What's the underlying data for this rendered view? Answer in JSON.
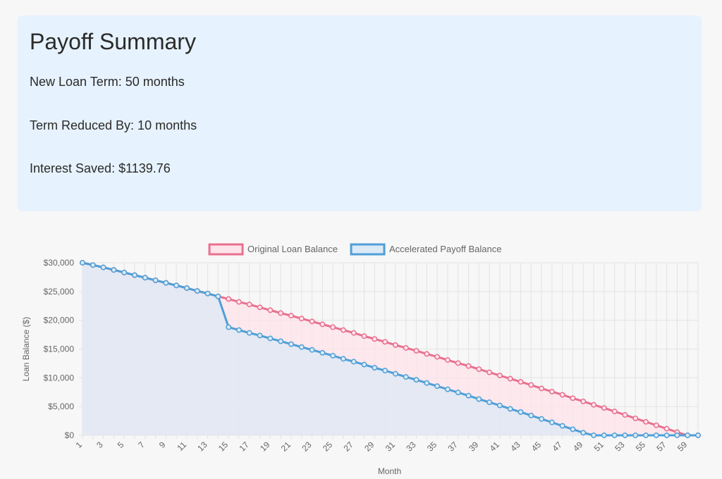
{
  "summary": {
    "title": "Payoff Summary",
    "new_term": "New Loan Term: 50 months",
    "reduced_by": "Term Reduced By: 10 months",
    "interest_saved": "Interest Saved: $1139.76"
  },
  "chart_data": {
    "type": "area",
    "xlabel": "Month",
    "ylabel": "Loan Balance ($)",
    "ylim": [
      0,
      30000
    ],
    "yticks": [
      0,
      5000,
      10000,
      15000,
      20000,
      25000,
      30000
    ],
    "ytick_labels": [
      "$0",
      "$5,000",
      "$10,000",
      "$15,000",
      "$20,000",
      "$25,000",
      "$30,000"
    ],
    "xticks": [
      1,
      3,
      5,
      7,
      9,
      11,
      13,
      15,
      17,
      19,
      21,
      23,
      25,
      27,
      29,
      31,
      33,
      35,
      37,
      39,
      41,
      43,
      45,
      47,
      49,
      51,
      53,
      55,
      57,
      59
    ],
    "x": [
      1,
      2,
      3,
      4,
      5,
      6,
      7,
      8,
      9,
      10,
      11,
      12,
      13,
      14,
      15,
      16,
      17,
      18,
      19,
      20,
      21,
      22,
      23,
      24,
      25,
      26,
      27,
      28,
      29,
      30,
      31,
      32,
      33,
      34,
      35,
      36,
      37,
      38,
      39,
      40,
      41,
      42,
      43,
      44,
      45,
      46,
      47,
      48,
      49,
      50,
      51,
      52,
      53,
      54,
      55,
      56,
      57,
      58,
      59,
      60
    ],
    "grid": true,
    "legend_position": "top",
    "series": [
      {
        "name": "Original Loan Balance",
        "color": "#e8708f",
        "fill": "#fde3ea",
        "values": [
          30000,
          29600,
          29200,
          28750,
          28300,
          27850,
          27400,
          26950,
          26500,
          26050,
          25600,
          25100,
          24650,
          24150,
          23700,
          23200,
          22750,
          22250,
          21750,
          21250,
          20800,
          20300,
          19800,
          19300,
          18800,
          18300,
          17800,
          17250,
          16750,
          16250,
          15700,
          15200,
          14700,
          14150,
          13650,
          13100,
          12550,
          12050,
          11500,
          10950,
          10400,
          9850,
          9300,
          8750,
          8150,
          7600,
          7050,
          6450,
          5900,
          5300,
          4750,
          4150,
          3550,
          2950,
          2350,
          1750,
          1150,
          550,
          0,
          0
        ]
      },
      {
        "name": "Accelerated Payoff Balance",
        "color": "#4f9fd6",
        "fill": "#dceaf6",
        "values": [
          30000,
          29600,
          29200,
          28750,
          28300,
          27850,
          27400,
          26950,
          26500,
          26050,
          25600,
          25100,
          24650,
          24150,
          18800,
          18300,
          17800,
          17350,
          16850,
          16350,
          15850,
          15350,
          14850,
          14350,
          13850,
          13300,
          12800,
          12300,
          11750,
          11250,
          10700,
          10150,
          9650,
          9100,
          8550,
          8000,
          7450,
          6900,
          6300,
          5750,
          5200,
          4600,
          4050,
          3450,
          2850,
          2250,
          1650,
          1050,
          450,
          0,
          0,
          0,
          0,
          0,
          0,
          0,
          0,
          0,
          0,
          0
        ]
      }
    ]
  }
}
